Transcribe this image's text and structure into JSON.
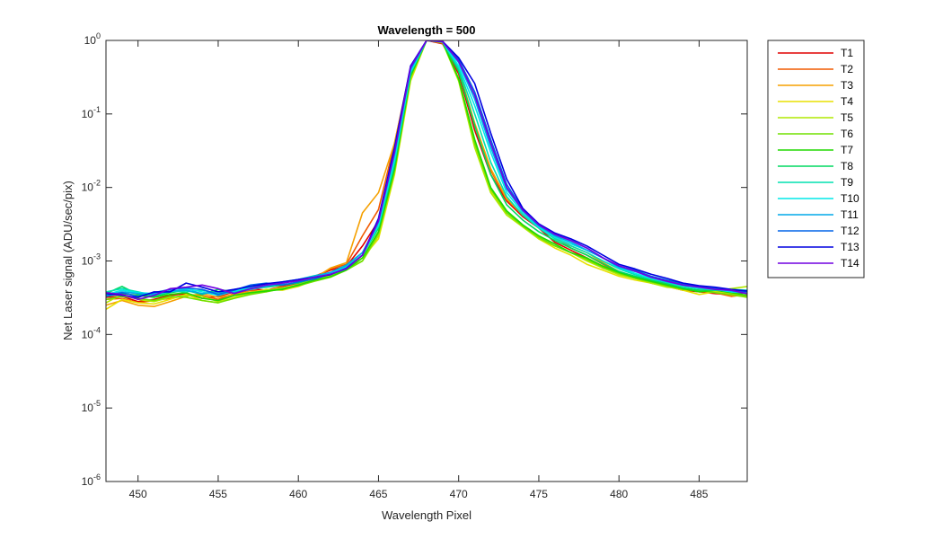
{
  "chart_data": {
    "type": "line",
    "title": "Wavelength = 500",
    "xlabel": "Wavelength Pixel",
    "ylabel": "Net Laser signal  (ADU/sec/pix)",
    "xlim": [
      448,
      488
    ],
    "ylim": [
      1e-06,
      1
    ],
    "yscale": "log",
    "grid": false,
    "legend_position": "outside-top-right",
    "x_ticks": [
      450,
      455,
      460,
      465,
      470,
      475,
      480,
      485
    ],
    "x_tick_labels": [
      "450",
      "455",
      "460",
      "465",
      "470",
      "475",
      "480",
      "485"
    ],
    "y_ticks": [
      1e-06,
      1e-05,
      0.0001,
      0.001,
      0.01,
      0.1,
      1
    ],
    "y_tick_labels": [
      {
        "base": "10",
        "exp": "-6"
      },
      {
        "base": "10",
        "exp": "-5"
      },
      {
        "base": "10",
        "exp": "-4"
      },
      {
        "base": "10",
        "exp": "-3"
      },
      {
        "base": "10",
        "exp": "-2"
      },
      {
        "base": "10",
        "exp": "-1"
      },
      {
        "base": "10",
        "exp": "0"
      }
    ],
    "x": [
      448,
      449,
      450,
      451,
      452,
      453,
      454,
      455,
      456,
      457,
      458,
      459,
      460,
      461,
      462,
      463,
      464,
      465,
      466,
      467,
      468,
      469,
      470,
      471,
      472,
      473,
      474,
      475,
      476,
      477,
      478,
      479,
      480,
      481,
      482,
      483,
      484,
      485,
      486,
      487,
      488
    ],
    "series": [
      {
        "name": "T1",
        "color": "#e00000",
        "values": [
          0.00032,
          0.00033,
          0.00028,
          0.0003,
          0.00034,
          0.00036,
          0.00031,
          0.00033,
          0.00038,
          0.00042,
          0.0004,
          0.00045,
          0.0005,
          0.00062,
          0.00075,
          0.00085,
          0.0016,
          0.0035,
          0.03,
          0.4,
          1.0,
          0.9,
          0.35,
          0.06,
          0.015,
          0.0065,
          0.004,
          0.0028,
          0.0018,
          0.0014,
          0.0011,
          0.0008,
          0.0007,
          0.0006,
          0.0005,
          0.00045,
          0.0004,
          0.00038,
          0.00036,
          0.00035,
          0.00037
        ]
      },
      {
        "name": "T2",
        "color": "#f05a00",
        "values": [
          0.0003,
          0.00031,
          0.00027,
          0.00029,
          0.00031,
          0.00035,
          0.00034,
          0.0003,
          0.00036,
          0.0004,
          0.00038,
          0.00046,
          0.00052,
          0.0006,
          0.00078,
          0.0009,
          0.0022,
          0.005,
          0.04,
          0.42,
          1.0,
          0.92,
          0.38,
          0.07,
          0.017,
          0.0068,
          0.0042,
          0.003,
          0.0021,
          0.0015,
          0.0012,
          0.0009,
          0.0007,
          0.0006,
          0.00052,
          0.00046,
          0.0004,
          0.00039,
          0.00037,
          0.00033,
          0.00035
        ]
      },
      {
        "name": "T3",
        "color": "#f5a000",
        "values": [
          0.00025,
          0.00029,
          0.00025,
          0.00024,
          0.00028,
          0.00033,
          0.00036,
          0.00032,
          0.00035,
          0.00038,
          0.00039,
          0.00042,
          0.00048,
          0.00058,
          0.0008,
          0.00095,
          0.0045,
          0.0085,
          0.04,
          0.38,
          1.0,
          0.93,
          0.4,
          0.075,
          0.018,
          0.007,
          0.0043,
          0.003,
          0.0022,
          0.0016,
          0.0013,
          0.00095,
          0.00072,
          0.0006,
          0.00054,
          0.00048,
          0.00042,
          0.0004,
          0.00038,
          0.00034,
          0.00033
        ]
      },
      {
        "name": "T4",
        "color": "#e8e000",
        "values": [
          0.00022,
          0.0003,
          0.00027,
          0.00026,
          0.0003,
          0.00035,
          0.00029,
          0.00027,
          0.00032,
          0.00037,
          0.00041,
          0.0004,
          0.00045,
          0.00055,
          0.00066,
          0.0008,
          0.0011,
          0.002,
          0.015,
          0.28,
          1.0,
          0.95,
          0.3,
          0.04,
          0.009,
          0.0045,
          0.003,
          0.002,
          0.0015,
          0.0012,
          0.0009,
          0.00075,
          0.00062,
          0.00055,
          0.0005,
          0.00045,
          0.0004,
          0.00035,
          0.00038,
          0.00036,
          0.00034
        ]
      },
      {
        "name": "T5",
        "color": "#b0e800",
        "values": [
          0.00027,
          0.00035,
          0.0003,
          0.00028,
          0.00032,
          0.00034,
          0.00033,
          0.00028,
          0.00034,
          0.00036,
          0.0004,
          0.00043,
          0.00047,
          0.00056,
          0.00064,
          0.00078,
          0.001,
          0.0022,
          0.016,
          0.3,
          1.0,
          0.94,
          0.28,
          0.035,
          0.0085,
          0.0042,
          0.0029,
          0.002,
          0.0016,
          0.0013,
          0.001,
          0.0008,
          0.00065,
          0.00058,
          0.0005,
          0.00044,
          0.00042,
          0.00038,
          0.00039,
          0.00042,
          0.00045
        ]
      },
      {
        "name": "T6",
        "color": "#70e000",
        "values": [
          0.0003,
          0.00033,
          0.00031,
          0.00029,
          0.00033,
          0.00032,
          0.00029,
          0.00027,
          0.00031,
          0.00035,
          0.00038,
          0.00042,
          0.00046,
          0.00053,
          0.0006,
          0.00075,
          0.001,
          0.0024,
          0.017,
          0.32,
          1.0,
          0.95,
          0.3,
          0.04,
          0.0095,
          0.0045,
          0.003,
          0.0021,
          0.0016,
          0.0013,
          0.00105,
          0.00082,
          0.00068,
          0.00058,
          0.00052,
          0.00046,
          0.00041,
          0.0004,
          0.00037,
          0.00035,
          0.00032
        ]
      },
      {
        "name": "T7",
        "color": "#20d800",
        "values": [
          0.00033,
          0.00036,
          0.00034,
          0.00032,
          0.00035,
          0.00037,
          0.00031,
          0.00029,
          0.00034,
          0.00037,
          0.00039,
          0.00041,
          0.00047,
          0.00055,
          0.00061,
          0.00076,
          0.0011,
          0.0025,
          0.018,
          0.33,
          1.0,
          0.95,
          0.3,
          0.045,
          0.01,
          0.0048,
          0.0031,
          0.0022,
          0.0017,
          0.0013,
          0.0011,
          0.00085,
          0.0007,
          0.0006,
          0.00053,
          0.00047,
          0.00042,
          0.00038,
          0.0004,
          0.00037,
          0.00034
        ]
      },
      {
        "name": "T8",
        "color": "#00d860",
        "values": [
          0.00036,
          0.00045,
          0.00035,
          0.00033,
          0.00037,
          0.0004,
          0.00035,
          0.00041,
          0.00038,
          0.00042,
          0.00044,
          0.00047,
          0.0005,
          0.00058,
          0.00066,
          0.0008,
          0.0012,
          0.0028,
          0.02,
          0.35,
          1.0,
          0.95,
          0.38,
          0.07,
          0.015,
          0.0058,
          0.0036,
          0.0025,
          0.0019,
          0.0015,
          0.0012,
          0.00092,
          0.00072,
          0.00062,
          0.00055,
          0.00049,
          0.00043,
          0.0004,
          0.00041,
          0.00039,
          0.00038
        ]
      },
      {
        "name": "T9",
        "color": "#00e0b0",
        "values": [
          0.00038,
          0.00042,
          0.00038,
          0.00034,
          0.00039,
          0.00038,
          0.0004,
          0.00036,
          0.00041,
          0.00044,
          0.00048,
          0.00052,
          0.00056,
          0.00063,
          0.00069,
          0.00085,
          0.0013,
          0.0032,
          0.025,
          0.38,
          1.0,
          0.95,
          0.42,
          0.1,
          0.022,
          0.0075,
          0.0042,
          0.0028,
          0.002,
          0.0016,
          0.0013,
          0.001,
          0.00078,
          0.00065,
          0.00057,
          0.00051,
          0.00045,
          0.00042,
          0.0004,
          0.00041,
          0.0004
        ]
      },
      {
        "name": "T10",
        "color": "#00e8e8",
        "values": [
          0.00035,
          0.0004,
          0.00037,
          0.00036,
          0.00038,
          0.00042,
          0.00038,
          0.00034,
          0.00039,
          0.00043,
          0.00046,
          0.0005,
          0.00055,
          0.0006,
          0.00068,
          0.00082,
          0.0012,
          0.003,
          0.023,
          0.37,
          1.0,
          0.96,
          0.45,
          0.13,
          0.03,
          0.0085,
          0.0045,
          0.0029,
          0.0021,
          0.0017,
          0.0014,
          0.0011,
          0.0008,
          0.00068,
          0.00058,
          0.00052,
          0.00046,
          0.00043,
          0.00041,
          0.00038,
          0.00037
        ]
      },
      {
        "name": "T11",
        "color": "#00a8e8",
        "values": [
          0.00034,
          0.00038,
          0.00036,
          0.00035,
          0.00039,
          0.0004,
          0.00036,
          0.00038,
          0.00037,
          0.00041,
          0.00045,
          0.00049,
          0.00056,
          0.00062,
          0.0007,
          0.00088,
          0.0013,
          0.0034,
          0.028,
          0.4,
          1.0,
          0.96,
          0.5,
          0.16,
          0.035,
          0.0095,
          0.0048,
          0.003,
          0.0022,
          0.0018,
          0.0014,
          0.0011,
          0.00082,
          0.00072,
          0.0006,
          0.00052,
          0.00047,
          0.00045,
          0.00042,
          0.00039,
          0.00036
        ]
      },
      {
        "name": "T12",
        "color": "#0064e8",
        "values": [
          0.00033,
          0.00037,
          0.00033,
          0.00037,
          0.00041,
          0.00043,
          0.00041,
          0.00035,
          0.0004,
          0.00047,
          0.0005,
          0.00047,
          0.00052,
          0.00057,
          0.00066,
          0.00078,
          0.0012,
          0.0036,
          0.032,
          0.42,
          1.0,
          0.97,
          0.55,
          0.2,
          0.045,
          0.011,
          0.005,
          0.0031,
          0.0023,
          0.0019,
          0.0015,
          0.0011,
          0.00085,
          0.00075,
          0.00062,
          0.00055,
          0.00049,
          0.00045,
          0.00043,
          0.0004,
          0.00038
        ]
      },
      {
        "name": "T13",
        "color": "#0000e0",
        "values": [
          0.00036,
          0.00034,
          0.00032,
          0.00038,
          0.00038,
          0.0005,
          0.00044,
          0.00038,
          0.00041,
          0.00045,
          0.00049,
          0.00052,
          0.00056,
          0.0006,
          0.00065,
          0.0008,
          0.0012,
          0.0038,
          0.035,
          0.45,
          1.0,
          0.97,
          0.58,
          0.26,
          0.055,
          0.013,
          0.0052,
          0.0032,
          0.0024,
          0.002,
          0.0016,
          0.0012,
          0.0009,
          0.00078,
          0.00066,
          0.00058,
          0.0005,
          0.00046,
          0.00044,
          0.00041,
          0.00039
        ]
      },
      {
        "name": "T14",
        "color": "#7000e0",
        "values": [
          0.00037,
          0.00035,
          0.0003,
          0.00034,
          0.00042,
          0.00044,
          0.00047,
          0.00042,
          0.00036,
          0.00042,
          0.00047,
          0.0005,
          0.00054,
          0.0006,
          0.00066,
          0.00079,
          0.0012,
          0.0035,
          0.03,
          0.43,
          1.0,
          0.96,
          0.52,
          0.18,
          0.04,
          0.01,
          0.0049,
          0.0031,
          0.0023,
          0.0019,
          0.0015,
          0.0011,
          0.00086,
          0.00073,
          0.0006,
          0.00053,
          0.00047,
          0.00044,
          0.00041,
          0.0004,
          0.00036
        ]
      }
    ]
  }
}
